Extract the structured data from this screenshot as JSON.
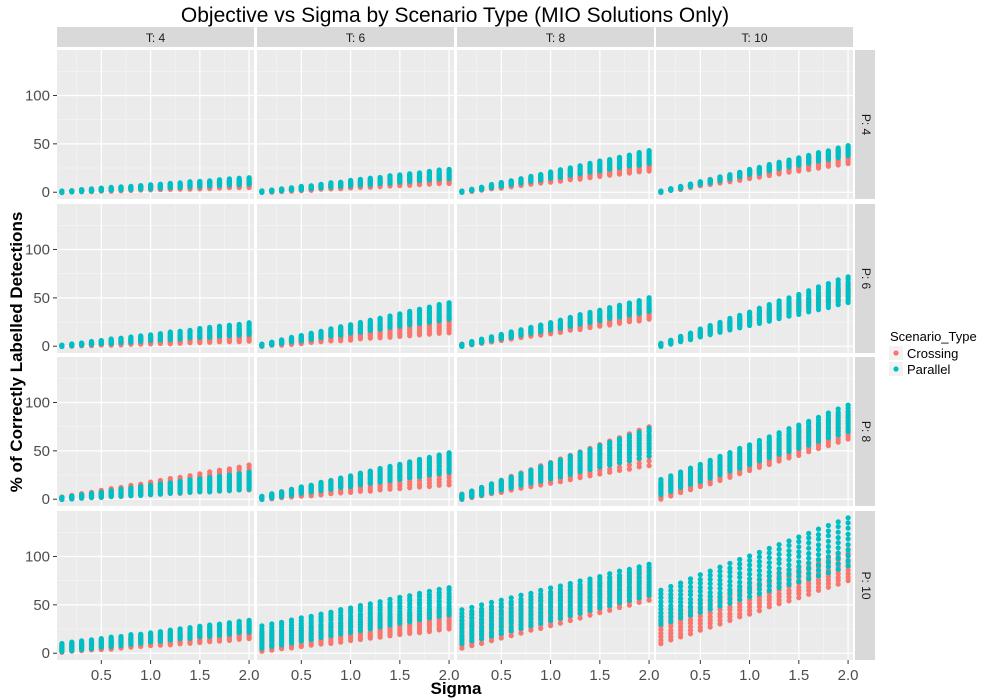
{
  "chart_data": {
    "type": "scatter",
    "title": "Objective vs Sigma by Scenario Type (MIO Solutions Only)",
    "xlabel": "Sigma",
    "ylabel": "% of Correctly Labelled Detections",
    "xlim": [
      0.05,
      2.05
    ],
    "ylim": [
      -7,
      147
    ],
    "x_ticks": [
      0.5,
      1.0,
      1.5,
      2.0
    ],
    "x_tick_labels": [
      "0.5",
      "1.0",
      "1.5",
      "2.0"
    ],
    "y_ticks": [
      0,
      50,
      100
    ],
    "y_tick_labels": [
      "0",
      "50",
      "100"
    ],
    "grid": true,
    "facet_columns": [
      "T: 4",
      "T: 6",
      "T: 8",
      "T: 10"
    ],
    "facet_rows": [
      "P: 4",
      "P: 6",
      "P: 8",
      "P: 10"
    ],
    "legend": {
      "title": "Scenario_Type",
      "position": "right",
      "entries": [
        {
          "name": "Crossing",
          "color": "#F8766D"
        },
        {
          "name": "Parallel",
          "color": "#00BFC4"
        }
      ]
    },
    "sigma_values": [
      0.1,
      0.2,
      0.3,
      0.4,
      0.5,
      0.6,
      0.7,
      0.8,
      0.9,
      1.0,
      1.1,
      1.2,
      1.3,
      1.4,
      1.5,
      1.6,
      1.7,
      1.8,
      1.9,
      2.0
    ],
    "series": [
      {
        "name": "Crossing",
        "color": "#F8766D",
        "panels": [
          {
            "T": "T: 4",
            "P": "P: 4",
            "at_sigma_0_1": [
              0,
              1
            ],
            "at_sigma_2_0": [
              5,
              13
            ]
          },
          {
            "T": "T: 6",
            "P": "P: 4",
            "at_sigma_0_1": [
              0,
              1
            ],
            "at_sigma_2_0": [
              9,
              19
            ]
          },
          {
            "T": "T: 8",
            "P": "P: 4",
            "at_sigma_0_1": [
              0,
              1
            ],
            "at_sigma_2_0": [
              22,
              32
            ]
          },
          {
            "T": "T: 10",
            "P": "P: 4",
            "at_sigma_0_1": [
              0,
              1
            ],
            "at_sigma_2_0": [
              30,
              46
            ]
          },
          {
            "T": "T: 4",
            "P": "P: 6",
            "at_sigma_0_1": [
              0,
              1
            ],
            "at_sigma_2_0": [
              5,
              15
            ]
          },
          {
            "T": "T: 6",
            "P": "P: 6",
            "at_sigma_0_1": [
              0,
              2
            ],
            "at_sigma_2_0": [
              14,
              33
            ]
          },
          {
            "T": "T: 8",
            "P": "P: 6",
            "at_sigma_0_1": [
              0,
              2
            ],
            "at_sigma_2_0": [
              28,
              40
            ]
          },
          {
            "T": "T: 10",
            "P": "P: 6",
            "at_sigma_0_1": [
              0,
              3
            ],
            "at_sigma_2_0": [
              50,
              63
            ]
          },
          {
            "T": "T: 4",
            "P": "P: 8",
            "at_sigma_0_1": [
              0,
              2
            ],
            "at_sigma_2_0": [
              10,
              35
            ]
          },
          {
            "T": "T: 6",
            "P": "P: 8",
            "at_sigma_0_1": [
              0,
              3
            ],
            "at_sigma_2_0": [
              15,
              47
            ]
          },
          {
            "T": "T: 8",
            "P": "P: 8",
            "at_sigma_0_1": [
              0,
              5
            ],
            "at_sigma_2_0": [
              35,
              75
            ]
          },
          {
            "T": "T: 10",
            "P": "P: 8",
            "at_sigma_0_1": [
              0,
              15
            ],
            "at_sigma_2_0": [
              62,
              90
            ]
          },
          {
            "T": "T: 4",
            "P": "P: 10",
            "at_sigma_0_1": [
              1,
              8
            ],
            "at_sigma_2_0": [
              15,
              28
            ]
          },
          {
            "T": "T: 6",
            "P": "P: 10",
            "at_sigma_0_1": [
              2,
              20
            ],
            "at_sigma_2_0": [
              25,
              47
            ]
          },
          {
            "T": "T: 8",
            "P": "P: 10",
            "at_sigma_0_1": [
              5,
              38
            ],
            "at_sigma_2_0": [
              55,
              87
            ]
          },
          {
            "T": "T: 10",
            "P": "P: 10",
            "at_sigma_0_1": [
              10,
              42
            ],
            "at_sigma_2_0": [
              75,
              107
            ]
          }
        ]
      },
      {
        "name": "Parallel",
        "color": "#00BFC4",
        "panels": [
          {
            "T": "T: 4",
            "P": "P: 4",
            "at_sigma_0_1": [
              0,
              1
            ],
            "at_sigma_2_0": [
              8,
              15
            ]
          },
          {
            "T": "T: 6",
            "P": "P: 4",
            "at_sigma_0_1": [
              0,
              1
            ],
            "at_sigma_2_0": [
              14,
              24
            ]
          },
          {
            "T": "T: 8",
            "P": "P: 4",
            "at_sigma_0_1": [
              0,
              1
            ],
            "at_sigma_2_0": [
              30,
              43
            ]
          },
          {
            "T": "T: 10",
            "P": "P: 4",
            "at_sigma_0_1": [
              0,
              1
            ],
            "at_sigma_2_0": [
              38,
              48
            ]
          },
          {
            "T": "T: 4",
            "P": "P: 6",
            "at_sigma_0_1": [
              0,
              1
            ],
            "at_sigma_2_0": [
              12,
              24
            ]
          },
          {
            "T": "T: 6",
            "P": "P: 6",
            "at_sigma_0_1": [
              0,
              2
            ],
            "at_sigma_2_0": [
              28,
              45
            ]
          },
          {
            "T": "T: 8",
            "P": "P: 6",
            "at_sigma_0_1": [
              0,
              2
            ],
            "at_sigma_2_0": [
              36,
              50
            ]
          },
          {
            "T": "T: 10",
            "P": "P: 6",
            "at_sigma_0_1": [
              0,
              3
            ],
            "at_sigma_2_0": [
              45,
              72
            ]
          },
          {
            "T": "T: 4",
            "P": "P: 8",
            "at_sigma_0_1": [
              0,
              2
            ],
            "at_sigma_2_0": [
              10,
              28
            ]
          },
          {
            "T": "T: 6",
            "P": "P: 8",
            "at_sigma_0_1": [
              0,
              3
            ],
            "at_sigma_2_0": [
              28,
              48
            ]
          },
          {
            "T": "T: 8",
            "P": "P: 8",
            "at_sigma_0_1": [
              0,
              5
            ],
            "at_sigma_2_0": [
              45,
              73
            ]
          },
          {
            "T": "T: 10",
            "P": "P: 8",
            "at_sigma_0_1": [
              5,
              20
            ],
            "at_sigma_2_0": [
              70,
              97
            ]
          },
          {
            "T": "T: 4",
            "P": "P: 10",
            "at_sigma_0_1": [
              2,
              10
            ],
            "at_sigma_2_0": [
              22,
              34
            ]
          },
          {
            "T": "T: 6",
            "P": "P: 10",
            "at_sigma_0_1": [
              5,
              28
            ],
            "at_sigma_2_0": [
              40,
              68
            ]
          },
          {
            "T": "T: 8",
            "P": "P: 10",
            "at_sigma_0_1": [
              10,
              45
            ],
            "at_sigma_2_0": [
              60,
              92
            ]
          },
          {
            "T": "T: 10",
            "P": "P: 10",
            "at_sigma_0_1": [
              30,
              65
            ],
            "at_sigma_2_0": [
              90,
              140
            ]
          }
        ]
      }
    ]
  }
}
